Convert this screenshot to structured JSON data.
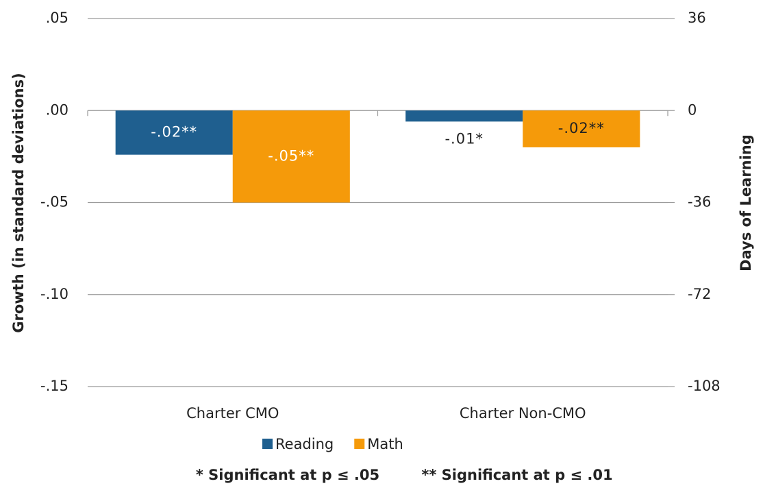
{
  "chart_data": {
    "type": "bar",
    "y_axis_title": "Growth (in standard deviations)",
    "y2_axis_title": "Days of Learning",
    "categories": [
      "Charter CMO",
      "Charter Non-CMO"
    ],
    "series": [
      {
        "name": "Reading",
        "color": "#1f5f8f",
        "values": [
          -0.024,
          -0.006
        ],
        "value_labels": [
          "-.02**",
          "-.01*"
        ]
      },
      {
        "name": "Math",
        "color": "#f59a0a",
        "values": [
          -0.05,
          -0.02
        ],
        "value_labels": [
          "-.05**",
          "-.02**"
        ]
      }
    ],
    "ylim": [
      -0.15,
      0.05
    ],
    "yticks": [
      {
        "value": 0.05,
        "label": ".05"
      },
      {
        "value": 0,
        "label": ".00"
      },
      {
        "value": -0.05,
        "label": "-.05"
      },
      {
        "value": -0.1,
        "label": "-.10"
      },
      {
        "value": -0.15,
        "label": "-.15"
      }
    ],
    "y2lim": [
      -108,
      36
    ],
    "y2ticks": [
      36,
      0,
      -36,
      -72,
      -108
    ],
    "grid": true,
    "annotations": [
      "* Significant at p ≤ .05",
      "** Significant at p ≤ .01"
    ]
  }
}
